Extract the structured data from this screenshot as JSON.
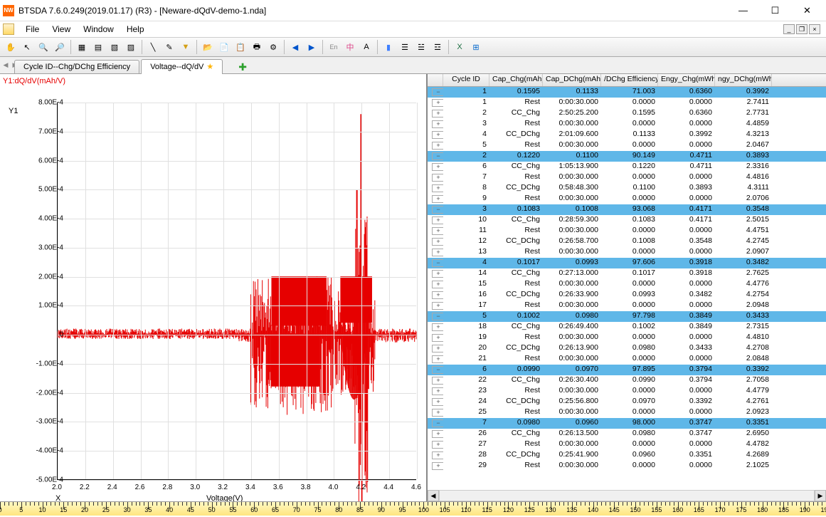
{
  "window": {
    "title": "BTSDA 7.6.0.249(2019.01.17) (R3) - [Neware-dQdV-demo-1.nda]"
  },
  "menu": [
    "File",
    "View",
    "Window",
    "Help"
  ],
  "tabs": [
    {
      "label": "Cycle ID--Chg/DChg Efficiency",
      "active": false
    },
    {
      "label": "Voltage--dQ/dV",
      "active": true,
      "star": true
    }
  ],
  "chart": {
    "y_label": "Y1:dQ/dV(mAh/V)",
    "y1": "Y1",
    "x_label": "X",
    "voltage": "Voltage(V)",
    "ylim": [
      -0.0005,
      0.0008
    ],
    "yticks": [
      "8.00E-4",
      "7.00E-4",
      "6.00E-4",
      "5.00E-4",
      "4.00E-4",
      "3.00E-4",
      "2.00E-4",
      "1.00E-4",
      "0",
      "-1.00E-4",
      "-2.00E-4",
      "-3.00E-4",
      "-4.00E-4",
      "-5.00E-4"
    ],
    "xlim": [
      2.0,
      4.6
    ],
    "xticks": [
      "2.0",
      "2.2",
      "2.4",
      "2.6",
      "2.8",
      "3.0",
      "3.2",
      "3.4",
      "3.6",
      "3.8",
      "4.0",
      "4.2",
      "4.4",
      "4.6"
    ],
    "series_color": "#e60000"
  },
  "columns": [
    "Cycle ID",
    "Cap_Chg(mAh)",
    "Cap_DChg(mAh)",
    "/DChg Efficiency",
    "Engy_Chg(mWh)",
    "ngy_DChg(mWh)"
  ],
  "rows": [
    {
      "t": "s",
      "id": "1",
      "cap": "0.1595",
      "dchg": "0.1133",
      "eff": "71.003",
      "ec": "0.6360",
      "ed": "0.3992"
    },
    {
      "t": "d",
      "idx": "1",
      "step": "Rest",
      "time": "0:00:30.000",
      "c1": "0.0000",
      "c2": "0.0000",
      "c3": "2.7411"
    },
    {
      "t": "d",
      "idx": "2",
      "step": "CC_Chg",
      "time": "2:50:25.200",
      "c1": "0.1595",
      "c2": "0.6360",
      "c3": "2.7731"
    },
    {
      "t": "d",
      "idx": "3",
      "step": "Rest",
      "time": "0:00:30.000",
      "c1": "0.0000",
      "c2": "0.0000",
      "c3": "4.4859"
    },
    {
      "t": "d",
      "idx": "4",
      "step": "CC_DChg",
      "time": "2:01:09.600",
      "c1": "0.1133",
      "c2": "0.3992",
      "c3": "4.3213"
    },
    {
      "t": "d",
      "idx": "5",
      "step": "Rest",
      "time": "0:00:30.000",
      "c1": "0.0000",
      "c2": "0.0000",
      "c3": "2.0467"
    },
    {
      "t": "s",
      "id": "2",
      "cap": "0.1220",
      "dchg": "0.1100",
      "eff": "90.149",
      "ec": "0.4711",
      "ed": "0.3893"
    },
    {
      "t": "d",
      "idx": "6",
      "step": "CC_Chg",
      "time": "1:05:13.900",
      "c1": "0.1220",
      "c2": "0.4711",
      "c3": "2.3316"
    },
    {
      "t": "d",
      "idx": "7",
      "step": "Rest",
      "time": "0:00:30.000",
      "c1": "0.0000",
      "c2": "0.0000",
      "c3": "4.4816"
    },
    {
      "t": "d",
      "idx": "8",
      "step": "CC_DChg",
      "time": "0:58:48.300",
      "c1": "0.1100",
      "c2": "0.3893",
      "c3": "4.3111"
    },
    {
      "t": "d",
      "idx": "9",
      "step": "Rest",
      "time": "0:00:30.000",
      "c1": "0.0000",
      "c2": "0.0000",
      "c3": "2.0706"
    },
    {
      "t": "s",
      "id": "3",
      "cap": "0.1083",
      "dchg": "0.1008",
      "eff": "93.068",
      "ec": "0.4171",
      "ed": "0.3548"
    },
    {
      "t": "d",
      "idx": "10",
      "step": "CC_Chg",
      "time": "0:28:59.300",
      "c1": "0.1083",
      "c2": "0.4171",
      "c3": "2.5015"
    },
    {
      "t": "d",
      "idx": "11",
      "step": "Rest",
      "time": "0:00:30.000",
      "c1": "0.0000",
      "c2": "0.0000",
      "c3": "4.4751"
    },
    {
      "t": "d",
      "idx": "12",
      "step": "CC_DChg",
      "time": "0:26:58.700",
      "c1": "0.1008",
      "c2": "0.3548",
      "c3": "4.2745"
    },
    {
      "t": "d",
      "idx": "13",
      "step": "Rest",
      "time": "0:00:30.000",
      "c1": "0.0000",
      "c2": "0.0000",
      "c3": "2.0907"
    },
    {
      "t": "s",
      "id": "4",
      "cap": "0.1017",
      "dchg": "0.0993",
      "eff": "97.606",
      "ec": "0.3918",
      "ed": "0.3482"
    },
    {
      "t": "d",
      "idx": "14",
      "step": "CC_Chg",
      "time": "0:27:13.000",
      "c1": "0.1017",
      "c2": "0.3918",
      "c3": "2.7625"
    },
    {
      "t": "d",
      "idx": "15",
      "step": "Rest",
      "time": "0:00:30.000",
      "c1": "0.0000",
      "c2": "0.0000",
      "c3": "4.4776"
    },
    {
      "t": "d",
      "idx": "16",
      "step": "CC_DChg",
      "time": "0:26:33.900",
      "c1": "0.0993",
      "c2": "0.3482",
      "c3": "4.2754"
    },
    {
      "t": "d",
      "idx": "17",
      "step": "Rest",
      "time": "0:00:30.000",
      "c1": "0.0000",
      "c2": "0.0000",
      "c3": "2.0948"
    },
    {
      "t": "s",
      "id": "5",
      "cap": "0.1002",
      "dchg": "0.0980",
      "eff": "97.798",
      "ec": "0.3849",
      "ed": "0.3433"
    },
    {
      "t": "d",
      "idx": "18",
      "step": "CC_Chg",
      "time": "0:26:49.400",
      "c1": "0.1002",
      "c2": "0.3849",
      "c3": "2.7315"
    },
    {
      "t": "d",
      "idx": "19",
      "step": "Rest",
      "time": "0:00:30.000",
      "c1": "0.0000",
      "c2": "0.0000",
      "c3": "4.4810"
    },
    {
      "t": "d",
      "idx": "20",
      "step": "CC_DChg",
      "time": "0:26:13.900",
      "c1": "0.0980",
      "c2": "0.3433",
      "c3": "4.2708"
    },
    {
      "t": "d",
      "idx": "21",
      "step": "Rest",
      "time": "0:00:30.000",
      "c1": "0.0000",
      "c2": "0.0000",
      "c3": "2.0848"
    },
    {
      "t": "s",
      "id": "6",
      "cap": "0.0990",
      "dchg": "0.0970",
      "eff": "97.895",
      "ec": "0.3794",
      "ed": "0.3392"
    },
    {
      "t": "d",
      "idx": "22",
      "step": "CC_Chg",
      "time": "0:26:30.400",
      "c1": "0.0990",
      "c2": "0.3794",
      "c3": "2.7058"
    },
    {
      "t": "d",
      "idx": "23",
      "step": "Rest",
      "time": "0:00:30.000",
      "c1": "0.0000",
      "c2": "0.0000",
      "c3": "4.4779"
    },
    {
      "t": "d",
      "idx": "24",
      "step": "CC_DChg",
      "time": "0:25:56.800",
      "c1": "0.0970",
      "c2": "0.3392",
      "c3": "4.2761"
    },
    {
      "t": "d",
      "idx": "25",
      "step": "Rest",
      "time": "0:00:30.000",
      "c1": "0.0000",
      "c2": "0.0000",
      "c3": "2.0923"
    },
    {
      "t": "s",
      "id": "7",
      "cap": "0.0980",
      "dchg": "0.0960",
      "eff": "98.000",
      "ec": "0.3747",
      "ed": "0.3351"
    },
    {
      "t": "d",
      "idx": "26",
      "step": "CC_Chg",
      "time": "0:26:13.500",
      "c1": "0.0980",
      "c2": "0.3747",
      "c3": "2.6950"
    },
    {
      "t": "d",
      "idx": "27",
      "step": "Rest",
      "time": "0:00:30.000",
      "c1": "0.0000",
      "c2": "0.0000",
      "c3": "4.4782"
    },
    {
      "t": "d",
      "idx": "28",
      "step": "CC_DChg",
      "time": "0:25:41.900",
      "c1": "0.0960",
      "c2": "0.3351",
      "c3": "4.2689"
    },
    {
      "t": "d",
      "idx": "29",
      "step": "Rest",
      "time": "0:00:30.000",
      "c1": "0.0000",
      "c2": "0.0000",
      "c3": "2.1025"
    }
  ],
  "ruler": {
    "start": 0,
    "end": 195,
    "step": 5
  }
}
